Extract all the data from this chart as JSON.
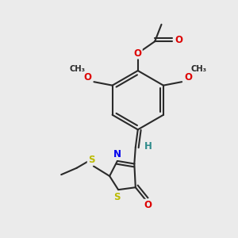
{
  "bg_color": "#ebebeb",
  "bond_color": "#2a2a2a",
  "bond_width": 1.5,
  "atom_colors": {
    "O": "#dd0000",
    "N": "#0000ee",
    "S": "#bbbb00",
    "C": "#2a2a2a",
    "H": "#2e8b8b"
  },
  "font_size": 8.5,
  "fig_bg": "#ebebeb"
}
